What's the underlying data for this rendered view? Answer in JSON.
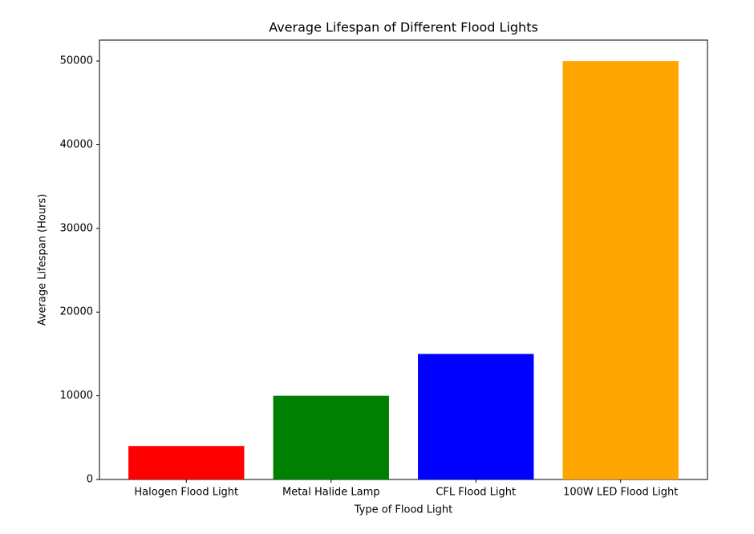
{
  "chart_data": {
    "type": "bar",
    "title": "Average Lifespan of Different Flood Lights",
    "xlabel": "Type of Flood Light",
    "ylabel": "Average Lifespan (Hours)",
    "categories": [
      "Halogen Flood Light",
      "Metal Halide Lamp",
      "CFL Flood Light",
      "100W LED Flood Light"
    ],
    "values": [
      4000,
      10000,
      15000,
      50000
    ],
    "colors": [
      "#ff0000",
      "#008000",
      "#0000ff",
      "#ffa500"
    ],
    "ylim": [
      0,
      52500
    ],
    "yticks": [
      0,
      10000,
      20000,
      30000,
      40000,
      50000
    ],
    "grid": false
  }
}
